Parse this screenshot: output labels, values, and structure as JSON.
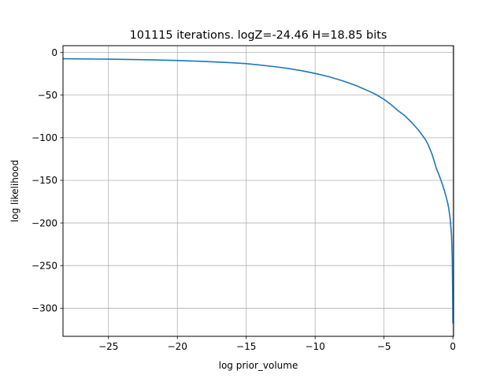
{
  "chart_data": {
    "type": "line",
    "title": "101115 iterations. logZ=-24.46 H=18.85 bits",
    "xlabel": "log prior_volume",
    "ylabel": "log likelihood",
    "xlim": [
      -28.3,
      0.05
    ],
    "ylim": [
      -333,
      8
    ],
    "grid": true,
    "xticks": [
      -25,
      -20,
      -15,
      -10,
      -5,
      0
    ],
    "xtick_labels": [
      "−25",
      "−20",
      "−15",
      "−10",
      "−5",
      "0"
    ],
    "yticks": [
      0,
      -50,
      -100,
      -150,
      -200,
      -250,
      -300
    ],
    "ytick_labels": [
      "0",
      "−50",
      "−100",
      "−150",
      "−200",
      "−250",
      "−300"
    ],
    "series": [
      {
        "color": "#1f77b4",
        "x": [
          -28.3,
          -25,
          -22,
          -20,
          -18,
          -16,
          -15,
          -14,
          -13,
          -12,
          -11,
          -10,
          -9,
          -8,
          -7,
          -6,
          -5.5,
          -5,
          -4.5,
          -4,
          -3.5,
          -3,
          -2.5,
          -2,
          -1.8,
          -1.5,
          -1.2,
          -1,
          -0.8,
          -0.6,
          -0.4,
          -0.3,
          -0.2,
          -0.1,
          -0.05,
          -0.02,
          0
        ],
        "y": [
          -7.3,
          -7.8,
          -8.6,
          -9.4,
          -10.5,
          -12,
          -13.1,
          -14.7,
          -16.5,
          -18.6,
          -21.3,
          -24.5,
          -28.4,
          -33.2,
          -39,
          -46,
          -50,
          -55,
          -61,
          -68,
          -74,
          -82,
          -91,
          -102,
          -108,
          -120,
          -136,
          -144,
          -153,
          -163,
          -175,
          -183,
          -195,
          -215,
          -240,
          -280,
          -318
        ]
      }
    ]
  }
}
